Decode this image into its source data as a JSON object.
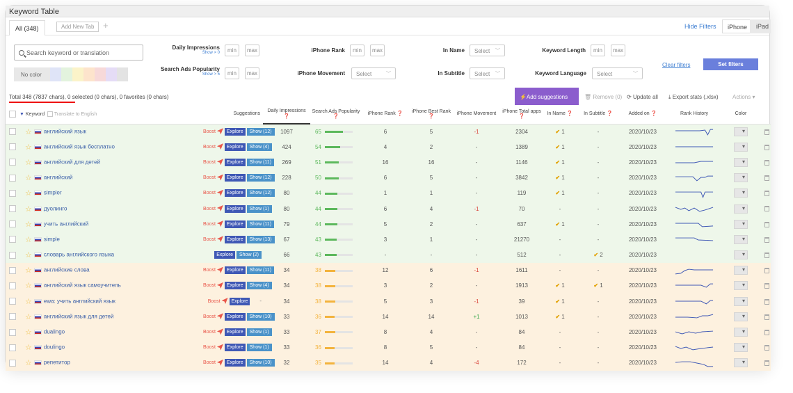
{
  "window": {
    "title": "Keyword Table"
  },
  "tabs": {
    "all": "All (348)",
    "add_new": "Add New Tab",
    "plus": "+"
  },
  "top_right": {
    "hide_filters": "Hide Filters",
    "iphone": "iPhone",
    "ipad": "iPad"
  },
  "filters": {
    "search_placeholder": "Search keyword or translation",
    "no_color": "No color",
    "color_swatches": [
      "#dfe4f7",
      "#e3f3de",
      "#fbf3c9",
      "#fde4cc",
      "#f7d9d9",
      "#e5dcf6",
      "#e3e3e3"
    ],
    "daily_impressions": {
      "label": "Daily Impressions",
      "sub": "Show > 0",
      "min": "min",
      "max": "max"
    },
    "search_ads_popularity": {
      "label": "Search Ads Popularity",
      "sub": "Show > 5",
      "min": "min",
      "max": "max"
    },
    "iphone_rank": {
      "label": "iPhone Rank",
      "min": "min",
      "max": "max"
    },
    "iphone_movement": {
      "label": "iPhone Movement",
      "select": "Select"
    },
    "in_name": {
      "label": "In Name",
      "select": "Select"
    },
    "in_subtitle": {
      "label": "In Subtitle",
      "select": "Select"
    },
    "keyword_length": {
      "label": "Keyword Length",
      "min": "min",
      "max": "max"
    },
    "keyword_language": {
      "label": "Keyword Language",
      "select": "Select"
    },
    "clear_filters": "Clear filters",
    "set_filters": "Set filters"
  },
  "summary": {
    "total": "Total 348 (7837 chars),",
    "rest": " 0 selected (0 chars), 0 favorites (0 chars)"
  },
  "actions": {
    "add_suggestions": "Add suggestions",
    "remove": "Remove (0)",
    "update_all": "Update all",
    "export": "Export stats (.xlsx)",
    "actions": "Actions"
  },
  "columns": {
    "keyword": "Keyword",
    "translate": "Translate to English",
    "suggestions": "Suggestions",
    "daily_impressions": "Daily Impressions",
    "search_ads_popularity": "Search Ads Popularity",
    "iphone_rank": "iPhone Rank",
    "iphone_best_rank": "iPhone Best Rank",
    "iphone_movement": "iPhone Movement",
    "iphone_total_apps": "iPhone Total apps",
    "in_name": "In Name",
    "in_subtitle": "In Subtitle",
    "added_on": "Added on",
    "rank_history": "Rank History",
    "color": "Color"
  },
  "labels": {
    "boost": "Boost",
    "explore": "Explore"
  },
  "accent": {
    "green": "#5cb85c",
    "orange": "#f3b33d"
  },
  "rows": [
    {
      "kw": "английский язык",
      "boost": true,
      "show": "Show (12)",
      "imp": "1097",
      "pop": "65",
      "rank": "6",
      "best": "5",
      "mov": "-1",
      "total": "2304",
      "inname": "1",
      "insub": "-",
      "added": "2020/10/23",
      "tone": "g"
    },
    {
      "kw": "английский язык бесплатно",
      "boost": true,
      "show": "Show (4)",
      "imp": "424",
      "pop": "54",
      "rank": "4",
      "best": "2",
      "mov": "-",
      "total": "1389",
      "inname": "1",
      "insub": "-",
      "added": "2020/10/23",
      "tone": "g"
    },
    {
      "kw": "английский для детей",
      "boost": true,
      "show": "Show (11)",
      "imp": "269",
      "pop": "51",
      "rank": "16",
      "best": "16",
      "mov": "-",
      "total": "1146",
      "inname": "1",
      "insub": "-",
      "added": "2020/10/23",
      "tone": "g"
    },
    {
      "kw": "английский",
      "boost": true,
      "show": "Show (12)",
      "imp": "228",
      "pop": "50",
      "rank": "6",
      "best": "5",
      "mov": "-",
      "total": "3842",
      "inname": "1",
      "insub": "-",
      "added": "2020/10/23",
      "tone": "g"
    },
    {
      "kw": "simpler",
      "boost": true,
      "show": "Show (12)",
      "imp": "80",
      "pop": "44",
      "rank": "1",
      "best": "1",
      "mov": "-",
      "total": "119",
      "inname": "1",
      "insub": "-",
      "added": "2020/10/23",
      "tone": "g"
    },
    {
      "kw": "дуолинго",
      "boost": true,
      "show": "Show (1)",
      "imp": "80",
      "pop": "44",
      "rank": "6",
      "best": "4",
      "mov": "-1",
      "total": "70",
      "inname": "-",
      "insub": "-",
      "added": "2020/10/23",
      "tone": "g"
    },
    {
      "kw": "учить английский",
      "boost": true,
      "show": "Show (11)",
      "imp": "79",
      "pop": "44",
      "rank": "5",
      "best": "2",
      "mov": "-",
      "total": "637",
      "inname": "1",
      "insub": "-",
      "added": "2020/10/23",
      "tone": "g"
    },
    {
      "kw": "simple",
      "boost": true,
      "show": "Show (13)",
      "imp": "67",
      "pop": "43",
      "rank": "3",
      "best": "1",
      "mov": "-",
      "total": "21270",
      "inname": "-",
      "insub": "-",
      "added": "2020/10/23",
      "tone": "g"
    },
    {
      "kw": "словарь английского языка",
      "boost": false,
      "show": "Show (2)",
      "imp": "66",
      "pop": "43",
      "rank": "-",
      "best": "-",
      "mov": "-",
      "total": "512",
      "inname": "-",
      "insub": "2",
      "added": "2020/10/23",
      "tone": "g"
    },
    {
      "kw": "английские слова",
      "boost": true,
      "show": "Show (11)",
      "imp": "34",
      "pop": "38",
      "rank": "12",
      "best": "6",
      "mov": "-1",
      "total": "1611",
      "inname": "-",
      "insub": "-",
      "added": "2020/10/23",
      "tone": "o"
    },
    {
      "kw": "английский язык самоучитель",
      "boost": true,
      "show": "Show (4)",
      "imp": "34",
      "pop": "38",
      "rank": "3",
      "best": "2",
      "mov": "-",
      "total": "1913",
      "inname": "1",
      "insub": "1",
      "added": "2020/10/23",
      "tone": "o"
    },
    {
      "kw": "ewa: учить английский язык",
      "boost": true,
      "show": "-",
      "imp": "34",
      "pop": "38",
      "rank": "5",
      "best": "3",
      "mov": "-1",
      "total": "39",
      "inname": "1",
      "insub": "-",
      "added": "2020/10/23",
      "tone": "o"
    },
    {
      "kw": "английский язык для детей",
      "boost": true,
      "show": "Show (10)",
      "imp": "33",
      "pop": "36",
      "rank": "14",
      "best": "14",
      "mov": "+1",
      "total": "1013",
      "inname": "1",
      "insub": "-",
      "added": "2020/10/23",
      "tone": "o"
    },
    {
      "kw": "dualingo",
      "boost": true,
      "show": "Show (1)",
      "imp": "33",
      "pop": "37",
      "rank": "8",
      "best": "4",
      "mov": "-",
      "total": "84",
      "inname": "-",
      "insub": "-",
      "added": "2020/10/23",
      "tone": "o"
    },
    {
      "kw": "doulingo",
      "boost": true,
      "show": "Show (1)",
      "imp": "33",
      "pop": "36",
      "rank": "8",
      "best": "5",
      "mov": "-",
      "total": "84",
      "inname": "-",
      "insub": "-",
      "added": "2020/10/23",
      "tone": "o"
    },
    {
      "kw": "репетитор",
      "boost": true,
      "show": "Show (10)",
      "imp": "32",
      "pop": "35",
      "rank": "14",
      "best": "4",
      "mov": "-4",
      "total": "172",
      "inname": "-",
      "insub": "-",
      "added": "2020/10/23",
      "tone": "o"
    }
  ]
}
